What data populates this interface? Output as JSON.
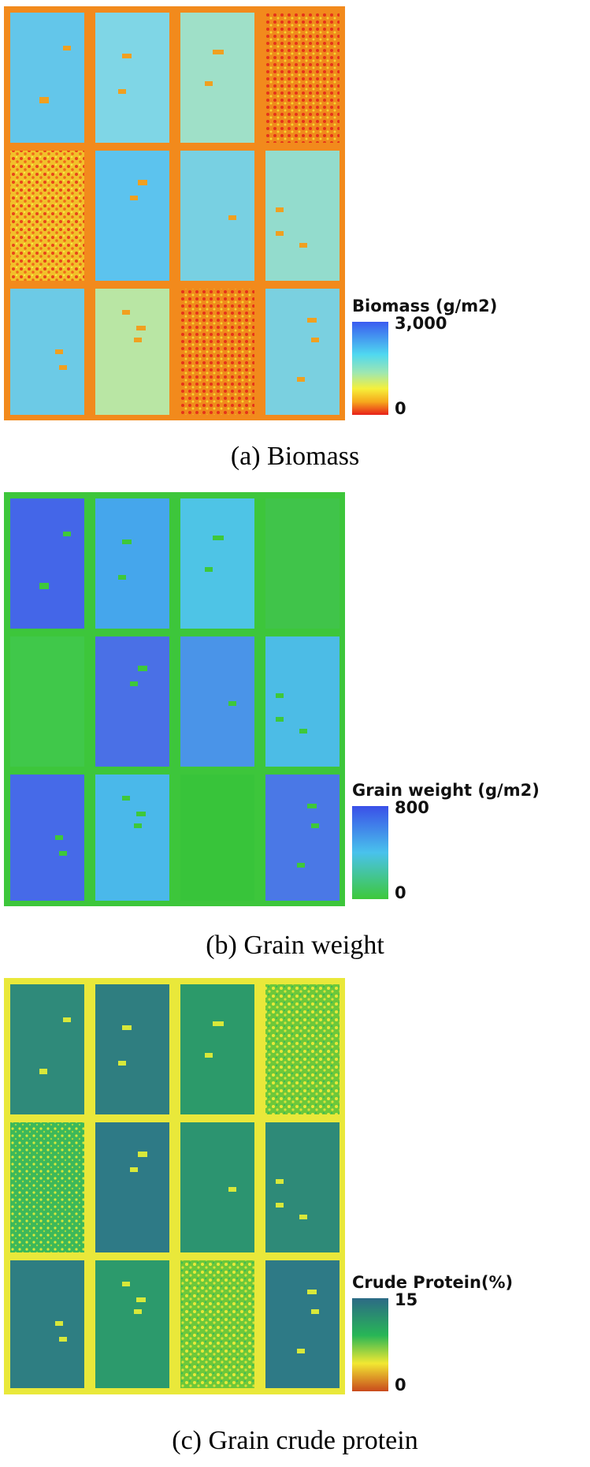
{
  "panels": [
    {
      "legend_title": "Biomass (g/m2)",
      "legend_max": "3,000",
      "legend_min": "0",
      "colors": {
        "high": "#3a5bf0",
        "mid": "#4fd8f0",
        "low_mid": "#f6f03a",
        "low": "#e83a14",
        "road": "#f28a1c"
      },
      "caption": "(a) Biomass"
    },
    {
      "legend_title": "Grain weight (g/m2)",
      "legend_max": "800",
      "legend_min": "0",
      "colors": {
        "high": "#3a4fe8",
        "mid": "#49c2ec",
        "low": "#3ec83a",
        "road": "#3dc63b"
      },
      "caption": "(b) Grain weight"
    },
    {
      "legend_title": "Crude Protein(%)",
      "legend_max": "15",
      "legend_min": "0",
      "colors": {
        "high": "#2c6a86",
        "mid": "#28b656",
        "low_mid": "#f2e832",
        "low": "#c94a1c",
        "road": "#e9e83a"
      },
      "caption": "(c) Grain crude protein"
    }
  ]
}
